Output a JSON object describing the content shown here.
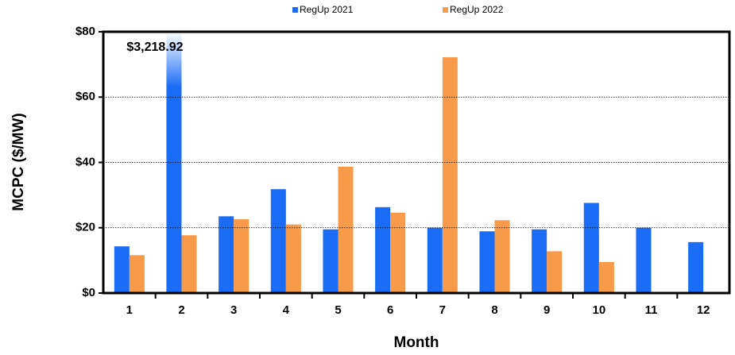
{
  "chart_data": {
    "type": "bar",
    "x_label": "Month",
    "y_label": "MCPC ($/MW)",
    "categories": [
      "1",
      "2",
      "3",
      "4",
      "5",
      "6",
      "7",
      "8",
      "9",
      "10",
      "11",
      "12"
    ],
    "series": [
      {
        "name": "RegUp 2021",
        "color": "#1a6cf5",
        "values": [
          14.3,
          3218.92,
          23.5,
          31.8,
          19.5,
          26.3,
          20.0,
          18.9,
          19.5,
          27.6,
          20.0,
          15.6
        ],
        "value_labels": [
          null,
          "$3,218.92",
          null,
          null,
          null,
          null,
          null,
          null,
          null,
          null,
          null,
          null
        ]
      },
      {
        "name": "RegUp 2022",
        "color": "#f79a4a",
        "values": [
          11.6,
          17.7,
          22.6,
          21.0,
          38.7,
          24.6,
          72.2,
          22.3,
          12.8,
          9.5,
          null,
          null
        ]
      }
    ],
    "ylim": [
      0,
      80
    ],
    "yticks": [
      {
        "value": 0,
        "label": "$0"
      },
      {
        "value": 20,
        "label": "$20"
      },
      {
        "value": 40,
        "label": "$40"
      },
      {
        "value": 60,
        "label": "$60"
      },
      {
        "value": 80,
        "label": "$80"
      }
    ],
    "grid": true,
    "legend": "top"
  }
}
